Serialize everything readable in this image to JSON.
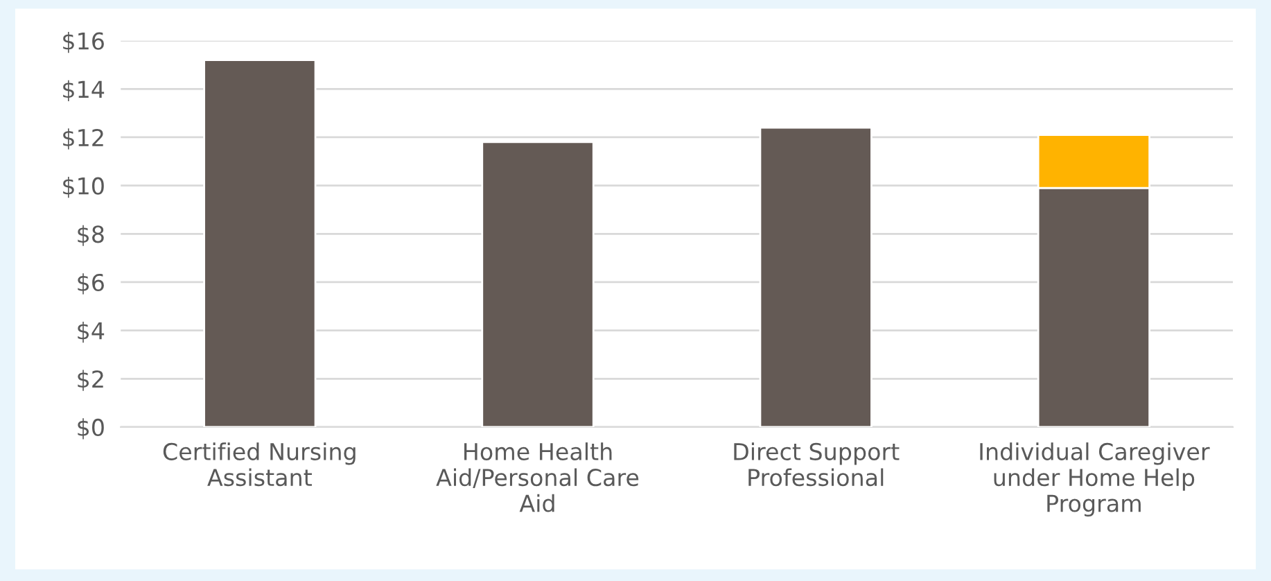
{
  "chart_data": {
    "type": "bar",
    "stacked": true,
    "categories": [
      "Certified Nursing Assistant",
      "Home Health Aid/Personal Care Aid",
      "Direct Support Professional",
      "Individual Caregiver under Home Help Program"
    ],
    "series": [
      {
        "color": "#645a55",
        "values": [
          15.2,
          11.8,
          12.4,
          9.9
        ]
      },
      {
        "color": "#ffb300",
        "values": [
          null,
          null,
          null,
          2.2
        ]
      }
    ],
    "ylim": [
      0,
      16
    ],
    "yticks": [
      {
        "value": 0,
        "label": "$0"
      },
      {
        "value": 2,
        "label": "$2"
      },
      {
        "value": 4,
        "label": "$4"
      },
      {
        "value": 6,
        "label": "$6"
      },
      {
        "value": 8,
        "label": "$8"
      },
      {
        "value": 10,
        "label": "$10"
      },
      {
        "value": 12,
        "label": "$12"
      },
      {
        "value": 14,
        "label": "$14"
      },
      {
        "value": 16,
        "label": "$16"
      }
    ],
    "grid": "y",
    "legend": false
  }
}
